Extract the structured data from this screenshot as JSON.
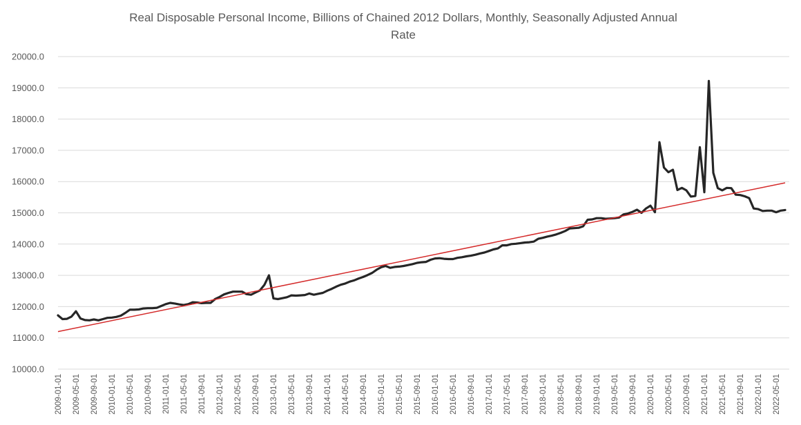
{
  "chart_data": {
    "type": "line",
    "title_lines": [
      "Real Disposable Personal Income, Billions of Chained 2012 Dollars, Monthly, Seasonally Adjusted Annual",
      "Rate"
    ],
    "x_start": "2009-01",
    "x_tick_labels": [
      "2009-01-01",
      "2009-05-01",
      "2009-09-01",
      "2010-01-01",
      "2010-05-01",
      "2010-09-01",
      "2011-01-01",
      "2011-05-01",
      "2011-09-01",
      "2012-01-01",
      "2012-05-01",
      "2012-09-01",
      "2013-01-01",
      "2013-05-01",
      "2013-09-01",
      "2014-01-01",
      "2014-05-01",
      "2014-09-01",
      "2015-01-01",
      "2015-05-01",
      "2015-09-01",
      "2016-01-01",
      "2016-05-01",
      "2016-09-01",
      "2017-01-01",
      "2017-05-01",
      "2017-09-01",
      "2018-01-01",
      "2018-05-01",
      "2018-09-01",
      "2019-01-01",
      "2019-05-01",
      "2019-09-01",
      "2020-01-01",
      "2020-05-01",
      "2020-09-01",
      "2021-01-01",
      "2021-05-01",
      "2021-09-01",
      "2022-01-01",
      "2022-05-01"
    ],
    "y_ticks": [
      "10000.0",
      "11000.0",
      "12000.0",
      "13000.0",
      "14000.0",
      "15000.0",
      "16000.0",
      "17000.0",
      "18000.0",
      "19000.0",
      "20000.0"
    ],
    "ylim": [
      10000,
      20000
    ],
    "grid": true,
    "legend": "none",
    "series": [
      {
        "values": [
          11720,
          11600,
          11610,
          11680,
          11850,
          11620,
          11570,
          11560,
          11590,
          11560,
          11600,
          11640,
          11650,
          11670,
          11710,
          11800,
          11900,
          11900,
          11910,
          11940,
          11950,
          11950,
          11960,
          12020,
          12080,
          12120,
          12100,
          12070,
          12050,
          12080,
          12140,
          12130,
          12110,
          12120,
          12120,
          12240,
          12310,
          12390,
          12440,
          12480,
          12480,
          12480,
          12400,
          12380,
          12450,
          12520,
          12700,
          13000,
          12260,
          12240,
          12270,
          12300,
          12360,
          12350,
          12360,
          12370,
          12420,
          12380,
          12410,
          12440,
          12510,
          12570,
          12640,
          12700,
          12740,
          12800,
          12840,
          12900,
          12950,
          13010,
          13080,
          13180,
          13260,
          13300,
          13240,
          13270,
          13280,
          13300,
          13330,
          13360,
          13400,
          13420,
          13430,
          13500,
          13540,
          13550,
          13530,
          13520,
          13520,
          13560,
          13580,
          13610,
          13630,
          13660,
          13700,
          13730,
          13780,
          13830,
          13860,
          13960,
          13960,
          14000,
          14010,
          14030,
          14050,
          14060,
          14080,
          14170,
          14200,
          14240,
          14270,
          14310,
          14360,
          14420,
          14500,
          14510,
          14520,
          14570,
          14780,
          14790,
          14830,
          14830,
          14810,
          14820,
          14830,
          14850,
          14950,
          14980,
          15030,
          15100,
          15000,
          15140,
          15230,
          15020,
          17260,
          16450,
          16300,
          16380,
          15730,
          15800,
          15720,
          15520,
          15540,
          17100,
          15660,
          19220,
          16280,
          15790,
          15720,
          15800,
          15790,
          15580,
          15570,
          15530,
          15470,
          15140,
          15120,
          15060,
          15070,
          15070,
          15020,
          15070,
          15090
        ]
      },
      {
        "kind": "trendline",
        "color": "#d42a2a",
        "values": [
          11200,
          15960
        ]
      }
    ],
    "line_color": "#262626"
  }
}
